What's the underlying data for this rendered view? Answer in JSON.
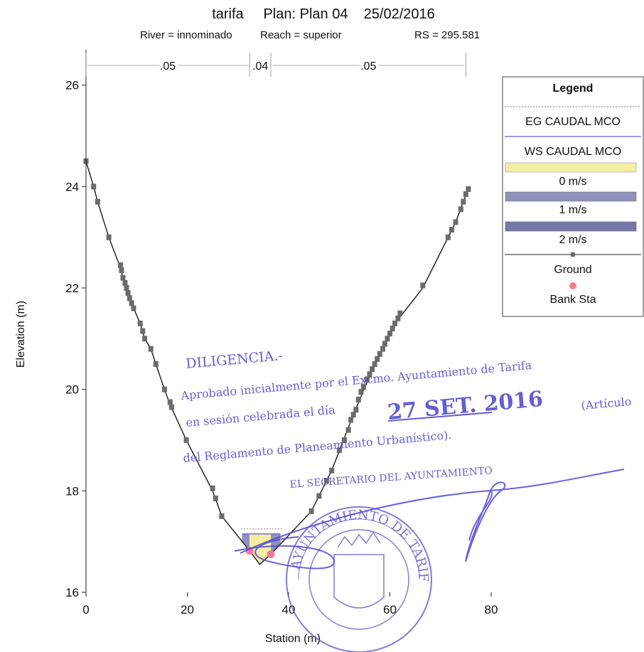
{
  "chart_data": {
    "type": "line",
    "title": "tarifa     Plan: Plan 04    25/02/2016",
    "subtitle_river": "River = innominado",
    "subtitle_reach": "Reach = superior",
    "subtitle_rs": "RS = 295.581",
    "xlabel": "Station (m)",
    "ylabel": "Elevation (m)",
    "xlim": [
      0,
      80
    ],
    "ylim": [
      16,
      26.5
    ],
    "x_ticks": [
      0,
      20,
      40,
      60,
      80
    ],
    "y_ticks": [
      16,
      18,
      20,
      22,
      24,
      26
    ],
    "x_tick_labels": [
      "0",
      "20",
      "40",
      "60",
      "80"
    ],
    "y_tick_labels": [
      "16",
      "18",
      "20",
      "22",
      "24",
      "26"
    ],
    "manning": [
      {
        "label": ".05",
        "from": 0,
        "to": 32.3
      },
      {
        "label": ".04",
        "from": 32.3,
        "to": 36.5
      },
      {
        "label": ".05",
        "from": 36.5,
        "to": 75
      }
    ],
    "ground": [
      [
        0.0,
        24.5
      ],
      [
        1.5,
        24.0
      ],
      [
        2.3,
        23.7
      ],
      [
        4.5,
        23.0
      ],
      [
        6.8,
        22.4
      ],
      [
        7.3,
        22.2
      ],
      [
        8.0,
        22.0
      ],
      [
        8.6,
        21.8
      ],
      [
        9.4,
        21.6
      ],
      [
        10.7,
        21.3
      ],
      [
        11.6,
        21.0
      ],
      [
        12.8,
        20.8
      ],
      [
        13.8,
        20.5
      ],
      [
        15.5,
        20.0
      ],
      [
        16.6,
        19.7
      ],
      [
        19.8,
        19.0
      ],
      [
        25.0,
        18.0
      ],
      [
        26.8,
        17.5
      ],
      [
        32.3,
        16.82
      ],
      [
        34.3,
        16.55
      ],
      [
        36.5,
        16.75
      ],
      [
        44.5,
        17.6
      ],
      [
        48.5,
        18.4
      ],
      [
        52.8,
        19.5
      ],
      [
        57.0,
        20.5
      ],
      [
        61.0,
        21.3
      ],
      [
        66.5,
        22.0
      ],
      [
        71.5,
        23.0
      ],
      [
        73.0,
        23.3
      ],
      [
        74.5,
        23.7
      ],
      [
        75.5,
        23.95
      ]
    ],
    "ground_markers": [
      [
        0.0,
        24.5
      ],
      [
        1.5,
        24.0
      ],
      [
        2.3,
        23.7
      ],
      [
        4.5,
        23.0
      ],
      [
        6.8,
        22.45
      ],
      [
        7.0,
        22.35
      ],
      [
        7.3,
        22.2
      ],
      [
        7.7,
        22.1
      ],
      [
        8.0,
        22.0
      ],
      [
        8.3,
        21.9
      ],
      [
        8.6,
        21.8
      ],
      [
        9.0,
        21.7
      ],
      [
        9.4,
        21.6
      ],
      [
        10.7,
        21.3
      ],
      [
        11.2,
        21.15
      ],
      [
        11.6,
        21.0
      ],
      [
        12.8,
        20.8
      ],
      [
        13.8,
        20.5
      ],
      [
        15.5,
        20.0
      ],
      [
        16.6,
        19.75
      ],
      [
        16.9,
        19.65
      ],
      [
        19.8,
        19.0
      ],
      [
        25.0,
        18.05
      ],
      [
        25.6,
        17.85
      ],
      [
        26.8,
        17.5
      ],
      [
        44.5,
        17.6
      ],
      [
        46.0,
        17.9
      ],
      [
        47.5,
        18.2
      ],
      [
        48.5,
        18.4
      ],
      [
        50.0,
        18.8
      ],
      [
        51.0,
        19.0
      ],
      [
        51.8,
        19.2
      ],
      [
        52.3,
        19.4
      ],
      [
        52.8,
        19.5
      ],
      [
        53.3,
        19.6
      ],
      [
        53.8,
        19.8
      ],
      [
        54.3,
        19.95
      ],
      [
        54.8,
        20.05
      ],
      [
        55.5,
        20.2
      ],
      [
        56.0,
        20.3
      ],
      [
        56.5,
        20.4
      ],
      [
        57.0,
        20.5
      ],
      [
        57.5,
        20.6
      ],
      [
        58.0,
        20.7
      ],
      [
        58.6,
        20.8
      ],
      [
        59.0,
        20.9
      ],
      [
        59.5,
        21.0
      ],
      [
        60.0,
        21.1
      ],
      [
        60.5,
        21.2
      ],
      [
        61.0,
        21.3
      ],
      [
        61.6,
        21.4
      ],
      [
        62.0,
        21.5
      ],
      [
        66.5,
        22.05
      ],
      [
        71.5,
        23.0
      ],
      [
        72.2,
        23.15
      ],
      [
        73.0,
        23.3
      ],
      [
        74.0,
        23.55
      ],
      [
        74.5,
        23.7
      ],
      [
        75.0,
        23.85
      ],
      [
        75.5,
        23.95
      ]
    ],
    "bank_stations": [
      [
        32.3,
        16.82
      ],
      [
        36.5,
        16.75
      ]
    ],
    "water_surface": 17.15,
    "energy_grade": 17.25,
    "velocity_fill": [
      {
        "from": 30.8,
        "to": 32.3,
        "velocity": "1 m/s"
      },
      {
        "from": 32.3,
        "to": 36.5,
        "velocity": "0 m/s"
      },
      {
        "from": 36.5,
        "to": 38.4,
        "velocity": "1 m/s"
      }
    ],
    "legend": {
      "title": "Legend",
      "placement": "top-right",
      "items": [
        "EG CAUDAL MCO",
        "WS CAUDAL MCO",
        "0 m/s",
        "1 m/s",
        "2 m/s",
        "Ground",
        "Bank Sta"
      ]
    },
    "colors": {
      "ground": "#1a1a1a",
      "marker": "#6b6b6b",
      "ws": "#6b63c7",
      "eg": "#8a8a8a",
      "vel0": "#f4eea4",
      "vel1": "#8f91bb",
      "vel2": "#7678a8",
      "bank": "#ef7c93"
    }
  },
  "stamp": {
    "color": "#4a44c8",
    "lines": [
      "DILIGENCIA.-",
      "Aprobado inicialmente por el Excmo. Ayuntamiento de Tarifa",
      "en sesión celebrada el día",
      "27 SET. 2016",
      "(Artículo",
      "del Reglamento de Planeamiento Urbanístico).",
      "EL SECRETARIO DEL AYUNTAMIENTO"
    ],
    "seal_text": "AYUNTAMIENTO DE TARIFA"
  }
}
